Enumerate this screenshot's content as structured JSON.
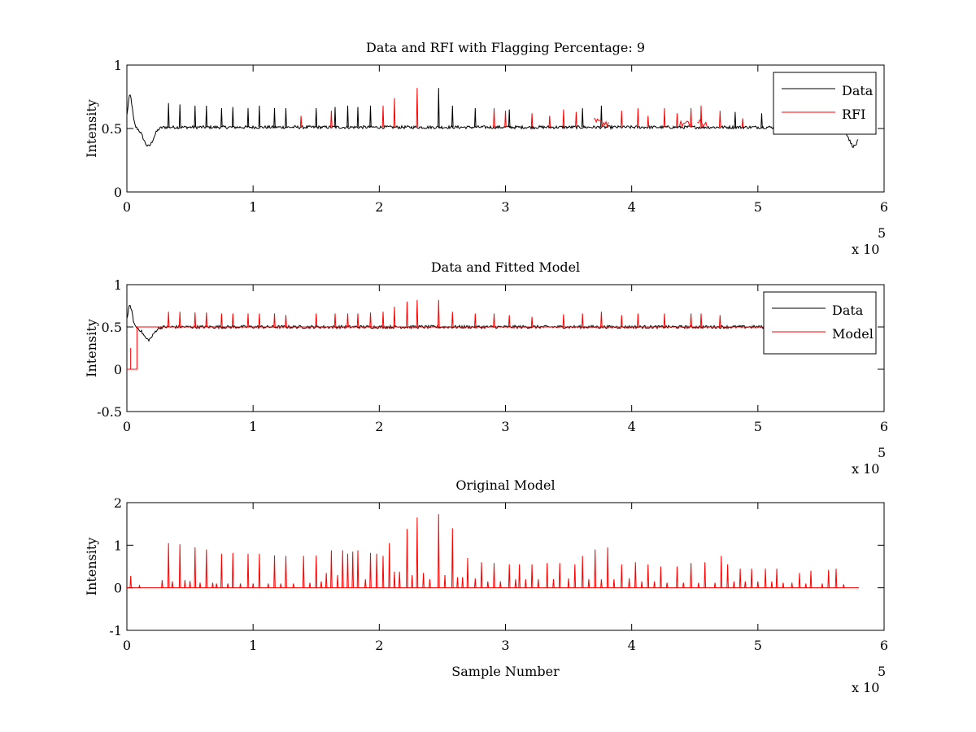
{
  "chart_data": [
    {
      "type": "line",
      "title": "Data and RFI with Flagging Percentage: 9",
      "xlabel": "",
      "ylabel": "Intensity",
      "xlim": [
        0,
        600000
      ],
      "ylim": [
        0,
        1
      ],
      "xticks": [
        "0",
        "1",
        "2",
        "3",
        "4",
        "5",
        "6"
      ],
      "yticks": [
        "0",
        "0.5",
        "1"
      ],
      "x_multiplier": "x 10",
      "x_multiplier_exp": "5",
      "grid": false,
      "legend": "top-right",
      "legend_entries": [
        {
          "name": "Data",
          "color": "#000000"
        },
        {
          "name": "RFI",
          "color": "#ff0000"
        }
      ],
      "baseline": 0.51,
      "x_end": 580000,
      "dips": [
        {
          "x": 17000,
          "min": 0.36
        },
        {
          "x": 576000,
          "min": 0.36
        }
      ],
      "start_bump": {
        "x": 2500,
        "peak": 0.76
      },
      "black_spikes": [
        {
          "x": 33000,
          "peak": 0.7
        },
        {
          "x": 42000,
          "peak": 0.69
        },
        {
          "x": 54000,
          "peak": 0.68
        },
        {
          "x": 63000,
          "peak": 0.68
        },
        {
          "x": 75000,
          "peak": 0.66
        },
        {
          "x": 84000,
          "peak": 0.67
        },
        {
          "x": 96000,
          "peak": 0.66
        },
        {
          "x": 105000,
          "peak": 0.68
        },
        {
          "x": 117000,
          "peak": 0.66
        },
        {
          "x": 126000,
          "peak": 0.66
        },
        {
          "x": 150000,
          "peak": 0.66
        },
        {
          "x": 165000,
          "peak": 0.67
        },
        {
          "x": 175000,
          "peak": 0.68
        },
        {
          "x": 183000,
          "peak": 0.67
        },
        {
          "x": 193000,
          "peak": 0.68
        },
        {
          "x": 247000,
          "peak": 0.82
        },
        {
          "x": 258000,
          "peak": 0.68
        },
        {
          "x": 276000,
          "peak": 0.66
        },
        {
          "x": 303000,
          "peak": 0.65
        },
        {
          "x": 361000,
          "peak": 0.66
        },
        {
          "x": 376000,
          "peak": 0.68
        },
        {
          "x": 482000,
          "peak": 0.63
        },
        {
          "x": 503000,
          "peak": 0.62
        }
      ],
      "rfi_spikes": [
        {
          "x": 138000,
          "peak": 0.6
        },
        {
          "x": 162000,
          "peak": 0.64
        },
        {
          "x": 203000,
          "peak": 0.68
        },
        {
          "x": 212000,
          "peak": 0.74
        },
        {
          "x": 230000,
          "peak": 0.82
        },
        {
          "x": 291000,
          "peak": 0.66
        },
        {
          "x": 300000,
          "peak": 0.64
        },
        {
          "x": 321000,
          "peak": 0.62
        },
        {
          "x": 335000,
          "peak": 0.6
        },
        {
          "x": 346000,
          "peak": 0.65
        },
        {
          "x": 356000,
          "peak": 0.63
        },
        {
          "x": 392000,
          "peak": 0.64
        },
        {
          "x": 405000,
          "peak": 0.66
        },
        {
          "x": 413000,
          "peak": 0.6
        },
        {
          "x": 426000,
          "peak": 0.66
        },
        {
          "x": 436000,
          "peak": 0.62
        },
        {
          "x": 447000,
          "peak": 0.66
        },
        {
          "x": 455000,
          "peak": 0.68
        },
        {
          "x": 470000,
          "peak": 0.64
        },
        {
          "x": 488000,
          "peak": 0.58
        }
      ],
      "rfi_bands": [
        {
          "start": 370000,
          "end": 382000,
          "peak": 0.58
        },
        {
          "start": 438000,
          "end": 448000,
          "peak": 0.56
        },
        {
          "start": 452000,
          "end": 460000,
          "peak": 0.57
        }
      ]
    },
    {
      "type": "line",
      "title": "Data and Fitted Model",
      "xlabel": "",
      "ylabel": "Intensity",
      "xlim": [
        0,
        600000
      ],
      "ylim": [
        -0.5,
        1
      ],
      "xticks": [
        "0",
        "1",
        "2",
        "3",
        "4",
        "5",
        "6"
      ],
      "yticks": [
        "-0.5",
        "0",
        "0.5",
        "1"
      ],
      "x_multiplier": "x 10",
      "x_multiplier_exp": "5",
      "grid": false,
      "legend": "top-right",
      "legend_entries": [
        {
          "name": "Data",
          "color": "#000000"
        },
        {
          "name": "Model",
          "color": "#ff0000"
        }
      ],
      "baseline": 0.5,
      "x_end": 580000,
      "dips": [
        {
          "x": 17000,
          "min": 0.35
        }
      ],
      "start_bump": {
        "x": 2500,
        "peak": 0.75
      },
      "model_step": [
        {
          "x": 0,
          "y": 0
        },
        {
          "x": 8000,
          "y": 0
        },
        {
          "x": 8000,
          "y": 0.5
        }
      ],
      "model_start_spike": {
        "x": 3000,
        "peak": 0.25
      },
      "model_spikes": [
        {
          "x": 33000,
          "peak": 0.68
        },
        {
          "x": 42000,
          "peak": 0.68
        },
        {
          "x": 54000,
          "peak": 0.67
        },
        {
          "x": 63000,
          "peak": 0.67
        },
        {
          "x": 75000,
          "peak": 0.66
        },
        {
          "x": 84000,
          "peak": 0.66
        },
        {
          "x": 96000,
          "peak": 0.66
        },
        {
          "x": 105000,
          "peak": 0.66
        },
        {
          "x": 117000,
          "peak": 0.66
        },
        {
          "x": 126000,
          "peak": 0.64
        },
        {
          "x": 150000,
          "peak": 0.66
        },
        {
          "x": 165000,
          "peak": 0.66
        },
        {
          "x": 175000,
          "peak": 0.66
        },
        {
          "x": 183000,
          "peak": 0.66
        },
        {
          "x": 193000,
          "peak": 0.67
        },
        {
          "x": 203000,
          "peak": 0.68
        },
        {
          "x": 212000,
          "peak": 0.74
        },
        {
          "x": 222000,
          "peak": 0.8
        },
        {
          "x": 230000,
          "peak": 0.82
        },
        {
          "x": 247000,
          "peak": 0.82
        },
        {
          "x": 258000,
          "peak": 0.68
        },
        {
          "x": 276000,
          "peak": 0.66
        },
        {
          "x": 291000,
          "peak": 0.66
        },
        {
          "x": 303000,
          "peak": 0.64
        },
        {
          "x": 321000,
          "peak": 0.62
        },
        {
          "x": 346000,
          "peak": 0.65
        },
        {
          "x": 361000,
          "peak": 0.66
        },
        {
          "x": 376000,
          "peak": 0.68
        },
        {
          "x": 392000,
          "peak": 0.64
        },
        {
          "x": 405000,
          "peak": 0.66
        },
        {
          "x": 426000,
          "peak": 0.66
        },
        {
          "x": 447000,
          "peak": 0.66
        },
        {
          "x": 455000,
          "peak": 0.66
        },
        {
          "x": 470000,
          "peak": 0.64
        }
      ]
    },
    {
      "type": "line",
      "title": "Original Model",
      "xlabel": "Sample Number",
      "ylabel": "Intensity",
      "xlim": [
        0,
        600000
      ],
      "ylim": [
        -1,
        2
      ],
      "xticks": [
        "0",
        "1",
        "2",
        "3",
        "4",
        "5",
        "6"
      ],
      "yticks": [
        "-1",
        "0",
        "1",
        "2"
      ],
      "x_multiplier": "x 10",
      "x_multiplier_exp": "5",
      "grid": false,
      "legend": "none",
      "baseline": 0,
      "x_end": 580000,
      "spikes": [
        {
          "x": 3000,
          "peak": 0.28
        },
        {
          "x": 10000,
          "peak": 0.05
        },
        {
          "x": 28000,
          "peak": 0.18
        },
        {
          "x": 33000,
          "peak": 1.05
        },
        {
          "x": 36000,
          "peak": 0.15
        },
        {
          "x": 42000,
          "peak": 1.02
        },
        {
          "x": 46000,
          "peak": 0.18
        },
        {
          "x": 50000,
          "peak": 0.16
        },
        {
          "x": 54000,
          "peak": 0.95
        },
        {
          "x": 58000,
          "peak": 0.12
        },
        {
          "x": 63000,
          "peak": 0.9
        },
        {
          "x": 68000,
          "peak": 0.12
        },
        {
          "x": 71000,
          "peak": 0.1
        },
        {
          "x": 75000,
          "peak": 0.8
        },
        {
          "x": 80000,
          "peak": 0.1
        },
        {
          "x": 84000,
          "peak": 0.82
        },
        {
          "x": 90000,
          "peak": 0.1
        },
        {
          "x": 96000,
          "peak": 0.8
        },
        {
          "x": 100000,
          "peak": 0.1
        },
        {
          "x": 105000,
          "peak": 0.8
        },
        {
          "x": 112000,
          "peak": 0.1
        },
        {
          "x": 117000,
          "peak": 0.76
        },
        {
          "x": 122000,
          "peak": 0.1
        },
        {
          "x": 126000,
          "peak": 0.75
        },
        {
          "x": 132000,
          "peak": 0.1
        },
        {
          "x": 140000,
          "peak": 0.75
        },
        {
          "x": 145000,
          "peak": 0.12
        },
        {
          "x": 150000,
          "peak": 0.76
        },
        {
          "x": 154000,
          "peak": 0.15
        },
        {
          "x": 158000,
          "peak": 0.35
        },
        {
          "x": 162000,
          "peak": 0.88
        },
        {
          "x": 167000,
          "peak": 0.3
        },
        {
          "x": 171000,
          "peak": 0.88
        },
        {
          "x": 175000,
          "peak": 0.8
        },
        {
          "x": 179000,
          "peak": 0.85
        },
        {
          "x": 183000,
          "peak": 0.88
        },
        {
          "x": 189000,
          "peak": 0.2
        },
        {
          "x": 193000,
          "peak": 0.82
        },
        {
          "x": 198000,
          "peak": 0.8
        },
        {
          "x": 203000,
          "peak": 0.75
        },
        {
          "x": 208000,
          "peak": 1.05
        },
        {
          "x": 212000,
          "peak": 0.38
        },
        {
          "x": 216000,
          "peak": 0.38
        },
        {
          "x": 222000,
          "peak": 1.38
        },
        {
          "x": 226000,
          "peak": 0.3
        },
        {
          "x": 230000,
          "peak": 1.65
        },
        {
          "x": 235000,
          "peak": 0.35
        },
        {
          "x": 240000,
          "peak": 0.2
        },
        {
          "x": 247000,
          "peak": 1.73
        },
        {
          "x": 252000,
          "peak": 0.3
        },
        {
          "x": 258000,
          "peak": 1.4
        },
        {
          "x": 262000,
          "peak": 0.25
        },
        {
          "x": 266000,
          "peak": 0.25
        },
        {
          "x": 270000,
          "peak": 0.7
        },
        {
          "x": 276000,
          "peak": 0.22
        },
        {
          "x": 281000,
          "peak": 0.6
        },
        {
          "x": 286000,
          "peak": 0.15
        },
        {
          "x": 291000,
          "peak": 0.58
        },
        {
          "x": 296000,
          "peak": 0.15
        },
        {
          "x": 303000,
          "peak": 0.55
        },
        {
          "x": 308000,
          "peak": 0.2
        },
        {
          "x": 311000,
          "peak": 0.55
        },
        {
          "x": 316000,
          "peak": 0.2
        },
        {
          "x": 321000,
          "peak": 0.55
        },
        {
          "x": 326000,
          "peak": 0.2
        },
        {
          "x": 333000,
          "peak": 0.58
        },
        {
          "x": 338000,
          "peak": 0.2
        },
        {
          "x": 343000,
          "peak": 0.58
        },
        {
          "x": 350000,
          "peak": 0.22
        },
        {
          "x": 355000,
          "peak": 0.55
        },
        {
          "x": 361000,
          "peak": 0.75
        },
        {
          "x": 366000,
          "peak": 0.2
        },
        {
          "x": 371000,
          "peak": 0.9
        },
        {
          "x": 376000,
          "peak": 0.2
        },
        {
          "x": 381000,
          "peak": 0.95
        },
        {
          "x": 386000,
          "peak": 0.2
        },
        {
          "x": 392000,
          "peak": 0.55
        },
        {
          "x": 398000,
          "peak": 0.22
        },
        {
          "x": 403000,
          "peak": 0.6
        },
        {
          "x": 408000,
          "peak": 0.15
        },
        {
          "x": 413000,
          "peak": 0.55
        },
        {
          "x": 418000,
          "peak": 0.15
        },
        {
          "x": 423000,
          "peak": 0.5
        },
        {
          "x": 428000,
          "peak": 0.12
        },
        {
          "x": 436000,
          "peak": 0.5
        },
        {
          "x": 441000,
          "peak": 0.12
        },
        {
          "x": 447000,
          "peak": 0.58
        },
        {
          "x": 453000,
          "peak": 0.12
        },
        {
          "x": 458000,
          "peak": 0.6
        },
        {
          "x": 466000,
          "peak": 0.12
        },
        {
          "x": 471000,
          "peak": 0.75
        },
        {
          "x": 476000,
          "peak": 0.55
        },
        {
          "x": 481000,
          "peak": 0.15
        },
        {
          "x": 486000,
          "peak": 0.45
        },
        {
          "x": 490000,
          "peak": 0.15
        },
        {
          "x": 495000,
          "peak": 0.45
        },
        {
          "x": 500000,
          "peak": 0.15
        },
        {
          "x": 506000,
          "peak": 0.45
        },
        {
          "x": 511000,
          "peak": 0.15
        },
        {
          "x": 515000,
          "peak": 0.45
        },
        {
          "x": 520000,
          "peak": 0.12
        },
        {
          "x": 527000,
          "peak": 0.12
        },
        {
          "x": 533000,
          "peak": 0.35
        },
        {
          "x": 538000,
          "peak": 0.1
        },
        {
          "x": 542000,
          "peak": 0.4
        },
        {
          "x": 551000,
          "peak": 0.1
        },
        {
          "x": 556000,
          "peak": 0.42
        },
        {
          "x": 562000,
          "peak": 0.45
        },
        {
          "x": 568000,
          "peak": 0.08
        }
      ]
    }
  ]
}
